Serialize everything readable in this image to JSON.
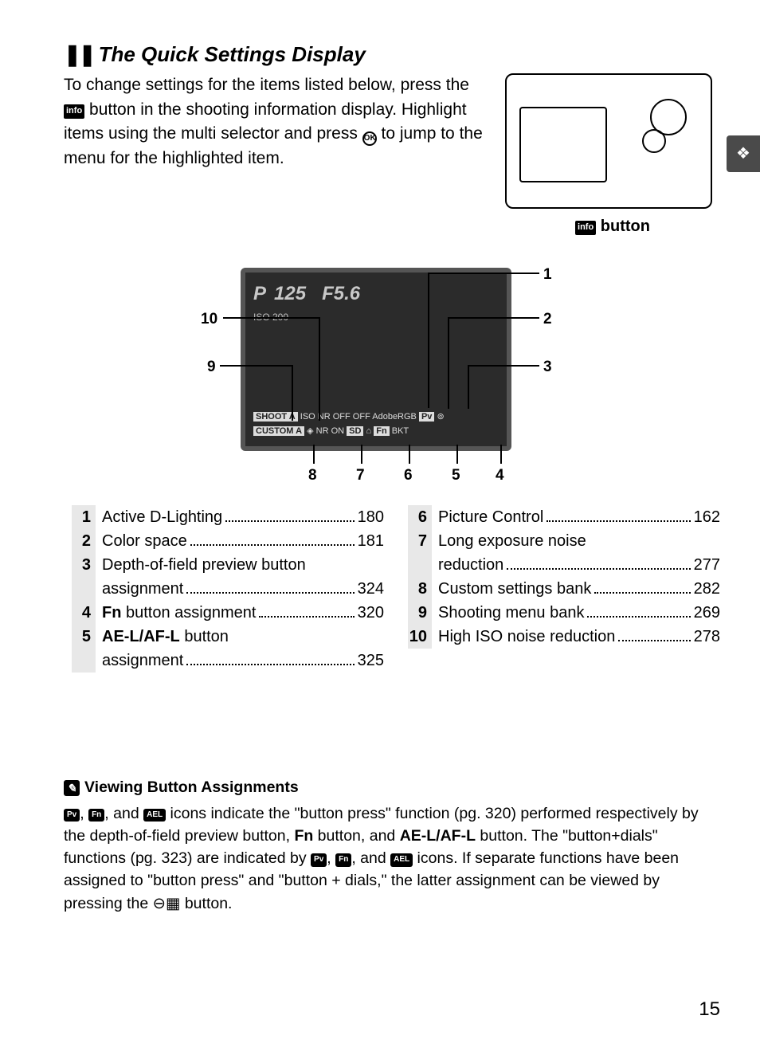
{
  "title": "The Quick Settings Display",
  "intro": "To change settings for the items listed below, press the ",
  "intro2": " button in the shooting information display.  Highlight items using the multi selector and press ",
  "intro3": " to jump to the menu for the highlighted item.",
  "info_label": "info",
  "ok_label": "OK",
  "button_caption": " button",
  "side_tab_glyph": "❖",
  "diagram": {
    "callouts": [
      "1",
      "2",
      "3",
      "4",
      "5",
      "6",
      "7",
      "8",
      "9",
      "10"
    ],
    "lcd_top_left": "P",
    "lcd_top_mid": "125",
    "lcd_top_right": "F5.6",
    "lcd_iso": "ISO  200",
    "lcd_row1": [
      "SHOOT A",
      "ISO NR OFF",
      "OFF",
      "AdobeRGB",
      "Pv",
      "⊚"
    ],
    "lcd_row2": [
      "CUSTOM A",
      "◈ NR ON",
      "SD",
      "⌂",
      "Fn",
      "BKT"
    ]
  },
  "legend_left": [
    {
      "n": "1",
      "label": "Active D-Lighting",
      "pg": "180"
    },
    {
      "n": "2",
      "label": "Color space",
      "pg": "181"
    },
    {
      "n": "3",
      "label": "Depth-of-field preview button assignment",
      "pg": "324",
      "wrap": true
    },
    {
      "n": "4",
      "label_html": "<span class='fn'>Fn</span> button assignment",
      "pg": "320"
    },
    {
      "n": "5",
      "label_html": "<span class='ael'>AE-L/AF-L</span> button assignment",
      "pg": "325",
      "wrap": true
    }
  ],
  "legend_right": [
    {
      "n": "6",
      "label": "Picture Control",
      "pg": "162"
    },
    {
      "n": "7",
      "label": "Long exposure noise reduction",
      "pg": "277",
      "wrap": true
    },
    {
      "n": "8",
      "label": "Custom settings bank",
      "pg": "282"
    },
    {
      "n": "9",
      "label": "Shooting menu bank",
      "pg": "269"
    },
    {
      "n": "10",
      "label": "High ISO noise reduction",
      "pg": "278"
    }
  ],
  "note": {
    "title": "Viewing Button Assignments",
    "text1": ", ",
    "text2": ", and ",
    "text3": " icons indicate the \"button press\" function (pg. 320) performed respectively by the depth-of-field preview button, ",
    "text4": " button, and ",
    "text5": " button.  The \"button+dials\" functions (pg. 323) are indicated by ",
    "text6": ", ",
    "text7": ", and ",
    "text8": " icons.  If separate functions have been assigned to \"button press\" and \"button + dials,\" the latter assignment can be viewed by pressing the ",
    "text9": " button.",
    "chip_pv": "Pv",
    "chip_fn": "Fn",
    "chip_ael": "AEL",
    "chip_pv2": "Pv",
    "chip_fn2": "Fn",
    "chip_ael2": "AEL",
    "fn_word": "Fn",
    "ael_word": "AE-L/AF-L",
    "zoom_icon": "⊖▦"
  },
  "page_number": "15"
}
